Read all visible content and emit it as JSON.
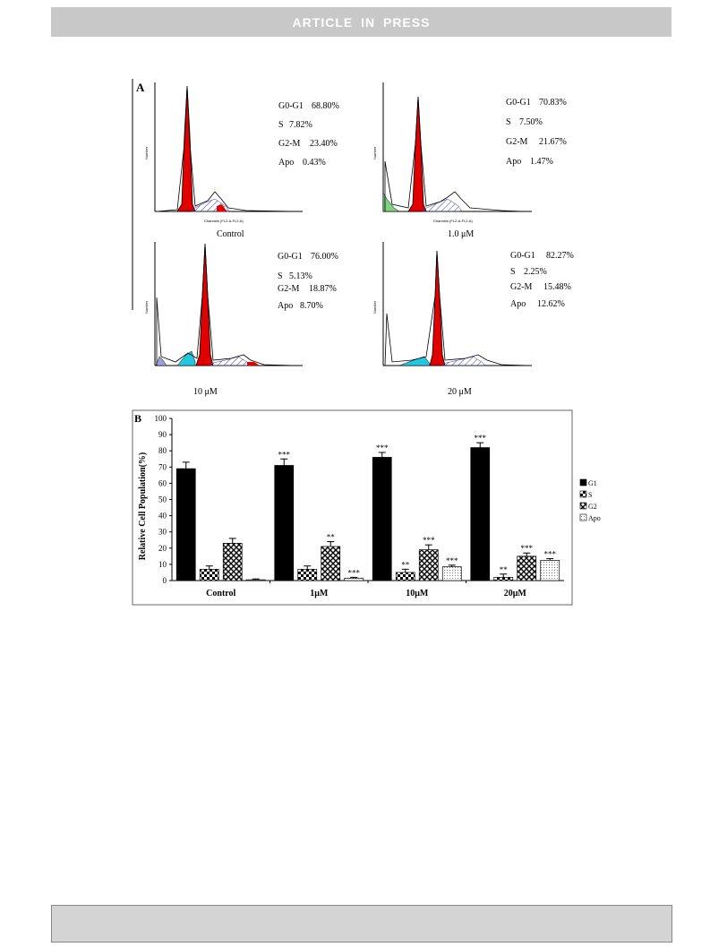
{
  "header": {
    "banner": "ARTICLE IN PRESS"
  },
  "panelA": {
    "label": "A",
    "x_axis_title": "Channels (FL2-A-FL2-A)",
    "y_axis_title": "Number",
    "panels": [
      {
        "caption": "Control",
        "stats": [
          {
            "name": "G0-G1",
            "value": "68.80%"
          },
          {
            "name": "S",
            "value": "7.82%"
          },
          {
            "name": "G2-M",
            "value": "23.40%"
          },
          {
            "name": "Apo",
            "value": "0.43%"
          }
        ]
      },
      {
        "caption": "1.0 μM",
        "stats": [
          {
            "name": "G0-G1",
            "value": "70.83%"
          },
          {
            "name": "S",
            "value": "7.50%"
          },
          {
            "name": "G2-M",
            "value": "21.67%"
          },
          {
            "name": "Apo",
            "value": "1.47%"
          }
        ]
      },
      {
        "caption": "10 μM",
        "stats": [
          {
            "name": "G0-G1",
            "value": "76.00%"
          },
          {
            "name": "S",
            "value": "5.13%"
          },
          {
            "name": "G2-M",
            "value": "18.87%"
          },
          {
            "name": "Apo",
            "value": "8.70%"
          }
        ]
      },
      {
        "caption": "20 μM",
        "stats": [
          {
            "name": "G0-G1",
            "value": "82.27%"
          },
          {
            "name": "S",
            "value": "2.25%"
          },
          {
            "name": "G2-M",
            "value": "15.48%"
          },
          {
            "name": "Apo",
            "value": "12.62%"
          }
        ]
      }
    ]
  },
  "chart_data": {
    "type": "bar",
    "panel_label": "B",
    "categories": [
      "Control",
      "1μM",
      "10μM",
      "20μM"
    ],
    "ylabel": "Relative Cell Population(%)",
    "ylim": [
      0,
      100
    ],
    "yticks": [
      0,
      10,
      20,
      30,
      40,
      50,
      60,
      70,
      80,
      90,
      100
    ],
    "legend_position": "right",
    "series": [
      {
        "name": "G1",
        "values": [
          69,
          71,
          76,
          82
        ],
        "errors": [
          4,
          4,
          3,
          3
        ],
        "significance": [
          "",
          "***",
          "***",
          "***"
        ],
        "fill": "solid"
      },
      {
        "name": "S",
        "values": [
          7,
          7,
          5,
          2
        ],
        "errors": [
          2,
          2,
          2,
          2
        ],
        "significance": [
          "",
          "",
          "**",
          "**"
        ],
        "fill": "checker"
      },
      {
        "name": "G2",
        "values": [
          23,
          21,
          19,
          15
        ],
        "errors": [
          3,
          3,
          3,
          2
        ],
        "significance": [
          "",
          "**",
          "***",
          "***"
        ],
        "fill": "crosshatch"
      },
      {
        "name": "Apo",
        "values": [
          0.5,
          1.5,
          8.5,
          12.5
        ],
        "errors": [
          0.5,
          0.5,
          1,
          1
        ],
        "significance": [
          "",
          "***",
          "***",
          "***"
        ],
        "fill": "dots"
      }
    ]
  }
}
